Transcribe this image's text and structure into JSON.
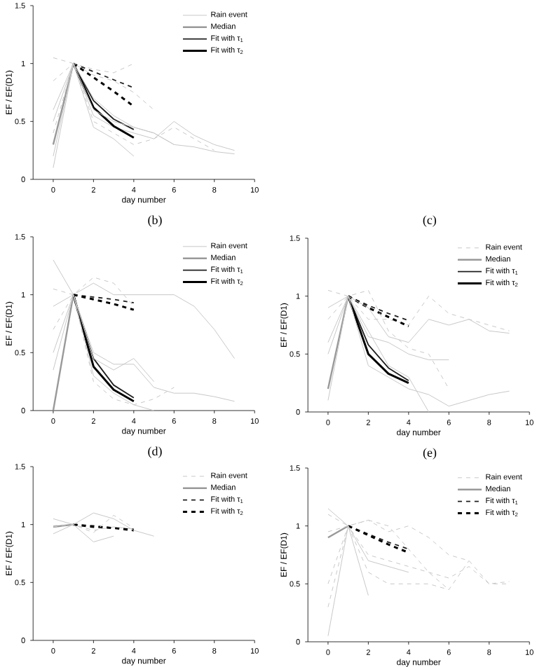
{
  "chart_data": [
    {
      "type": "line",
      "xlabel": "day number",
      "ylabel": "EF / EF(D1)",
      "xlim": [
        -1,
        10
      ],
      "ylim": [
        0,
        1.5
      ],
      "xticks": [
        0,
        2,
        4,
        6,
        8,
        10
      ],
      "yticks": [
        0,
        0.5,
        1,
        1.5
      ],
      "legend": "top right",
      "annotations": [
        "(b)",
        "(c)"
      ],
      "series": [
        {
          "name": "Rain event",
          "color": "#c8c8c8",
          "line_style": "solid",
          "x": [
            0,
            1,
            2,
            3,
            4,
            5,
            6,
            7,
            8,
            9
          ],
          "values": [
            0.1,
            1,
            0.55,
            0.45,
            0.4,
            0.35,
            0.5,
            0.38,
            0.3,
            0.25
          ]
        },
        {
          "name": "Median",
          "color": "#999999",
          "line_style": "solid",
          "x": [
            0,
            1
          ],
          "values": [
            0.3,
            1
          ]
        },
        {
          "name": "Fit with τ$_{1}$",
          "color": "#202020",
          "line_style": "solid",
          "x": [
            1,
            2,
            3,
            4
          ],
          "values": [
            1,
            0.68,
            0.52,
            0.43
          ]
        },
        {
          "name": "Fit with τ$_{2}$",
          "color": "#000000",
          "line_style": "solid",
          "x": [
            1,
            2,
            3,
            4
          ],
          "values": [
            1,
            0.62,
            0.46,
            0.36
          ]
        },
        {
          "color": "#202020",
          "line_style": "dashed",
          "x": [
            1,
            2,
            3,
            4
          ],
          "values": [
            1,
            0.93,
            0.86,
            0.79
          ]
        },
        {
          "color": "#000000",
          "line_style": "dashed",
          "x": [
            1,
            2,
            3,
            4
          ],
          "values": [
            1,
            0.88,
            0.76,
            0.63
          ]
        },
        {
          "color": "#c8c8c8",
          "line_style": "dashed",
          "x": [
            0,
            1,
            2,
            3,
            4
          ],
          "values": [
            0.85,
            1,
            0.95,
            0.92,
            1.0
          ]
        },
        {
          "color": "#c8c8c8",
          "line_style": "solid",
          "x": [
            0,
            1,
            2,
            3,
            4,
            5,
            6
          ],
          "values": [
            0.6,
            1,
            0.7,
            0.55,
            0.45,
            0.4,
            0.3
          ]
        },
        {
          "color": "#c8c8c8",
          "line_style": "dashed",
          "x": [
            0,
            1,
            2,
            3,
            4,
            5,
            6,
            7,
            8
          ],
          "values": [
            0.4,
            1,
            0.5,
            0.4,
            0.3,
            0.35,
            0.45,
            0.35,
            0.25
          ]
        },
        {
          "color": "#c8c8c8",
          "line_style": "dashed",
          "x": [
            0,
            1,
            2,
            3,
            4,
            5
          ],
          "values": [
            1.05,
            1,
            0.9,
            0.85,
            0.75,
            0.6
          ]
        },
        {
          "color": "#c8c8c8",
          "line_style": "solid",
          "x": [
            0,
            1,
            2,
            3,
            4
          ],
          "values": [
            0.2,
            1,
            0.45,
            0.35,
            0.2
          ]
        },
        {
          "color": "#c8c8c8",
          "line_style": "solid",
          "x": [
            0,
            1,
            2,
            3,
            4,
            5,
            6,
            7,
            8,
            9
          ],
          "values": [
            0.5,
            1,
            0.6,
            0.5,
            0.45,
            0.4,
            0.3,
            0.28,
            0.24,
            0.22
          ]
        }
      ]
    },
    {
      "type": "line",
      "xlabel": "day number",
      "ylabel": "EF / EF(D1)",
      "xlim": [
        -1,
        10
      ],
      "ylim": [
        0,
        1.5
      ],
      "xticks": [
        0,
        2,
        4,
        6,
        8,
        10
      ],
      "yticks": [
        0,
        0.5,
        1,
        1.5
      ],
      "legend": "top right",
      "annotations": [
        "(d)"
      ],
      "series": [
        {
          "name": "Rain event",
          "color": "#c8c8c8",
          "line_style": "solid",
          "x": [
            0,
            1,
            2,
            3,
            4,
            5,
            6,
            7,
            8,
            9
          ],
          "values": [
            1.3,
            1,
            1.1,
            1.0,
            1.0,
            1.0,
            1.0,
            0.9,
            0.7,
            0.45
          ]
        },
        {
          "name": "Median",
          "color": "#999999",
          "line_style": "solid",
          "x": [
            0,
            1
          ],
          "values": [
            0,
            1
          ]
        },
        {
          "name": "Fit with τ$_{1}$",
          "color": "#202020",
          "line_style": "solid",
          "x": [
            1,
            2,
            3,
            4
          ],
          "values": [
            1,
            0.45,
            0.22,
            0.11
          ]
        },
        {
          "name": "Fit with τ$_{2}$",
          "color": "#000000",
          "line_style": "solid",
          "x": [
            1,
            2,
            3,
            4
          ],
          "values": [
            1,
            0.38,
            0.18,
            0.08
          ]
        },
        {
          "color": "#202020",
          "line_style": "dashed",
          "x": [
            1,
            2,
            3,
            4
          ],
          "values": [
            1,
            0.98,
            0.96,
            0.93
          ]
        },
        {
          "color": "#000000",
          "line_style": "dashed",
          "x": [
            1,
            2,
            3,
            4
          ],
          "values": [
            1,
            0.96,
            0.92,
            0.87
          ]
        },
        {
          "color": "#c8c8c8",
          "line_style": "solid",
          "x": [
            0,
            1,
            2,
            3,
            4,
            5,
            6,
            7,
            8,
            9
          ],
          "values": [
            0.35,
            1,
            0.5,
            0.4,
            0.4,
            0.2,
            0.15,
            0.15,
            0.12,
            0.08
          ]
        },
        {
          "color": "#c8c8c8",
          "line_style": "solid",
          "x": [
            0,
            1,
            2,
            3,
            4,
            5
          ],
          "values": [
            0.9,
            1,
            0.3,
            0.15,
            0.05,
            0
          ]
        },
        {
          "color": "#c8c8c8",
          "line_style": "dashed",
          "x": [
            0,
            1,
            2,
            3,
            4,
            5,
            6
          ],
          "values": [
            0.7,
            1,
            0.25,
            0.1,
            0.05,
            0.1,
            0.2
          ]
        },
        {
          "color": "#c8c8c8",
          "line_style": "dashed",
          "x": [
            0,
            1,
            2,
            3,
            4
          ],
          "values": [
            1.05,
            1,
            1.15,
            1.1,
            0.9
          ]
        },
        {
          "color": "#c8c8c8",
          "line_style": "solid",
          "x": [
            0,
            1,
            2,
            3,
            4,
            5
          ],
          "values": [
            0.5,
            1,
            0.45,
            0.35,
            0.45,
            0.25
          ]
        }
      ]
    },
    {
      "type": "line",
      "xlabel": "day number",
      "ylabel": "EF / EF(D1)",
      "xlim": [
        -1,
        10
      ],
      "ylim": [
        0,
        1.5
      ],
      "xticks": [
        0,
        2,
        4,
        6,
        8,
        10
      ],
      "yticks": [
        0,
        0.5,
        1,
        1.5
      ],
      "legend": "top right",
      "annotations": [
        "(e)"
      ],
      "series": [
        {
          "name": "Rain event",
          "color": "#c8c8c8",
          "line_style": "dashed",
          "x": [
            0,
            1,
            2,
            3,
            4,
            5,
            6,
            7,
            8,
            9
          ],
          "values": [
            0.8,
            1,
            0.8,
            0.8,
            0.75,
            1.0,
            0.85,
            0.8,
            0.75,
            0.7
          ]
        },
        {
          "name": "Median",
          "color": "#999999",
          "line_style": "solid",
          "x": [
            0,
            1
          ],
          "values": [
            0.2,
            1
          ]
        },
        {
          "name": "Fit with τ$_{1}$",
          "color": "#202020",
          "line_style": "solid",
          "x": [
            1,
            2,
            3,
            4
          ],
          "values": [
            1,
            0.58,
            0.38,
            0.27
          ]
        },
        {
          "name": "Fit with τ$_{2}$",
          "color": "#000000",
          "line_style": "solid",
          "x": [
            1,
            2,
            3,
            4
          ],
          "values": [
            1,
            0.5,
            0.33,
            0.25
          ]
        },
        {
          "color": "#202020",
          "line_style": "dashed",
          "x": [
            1,
            2,
            3,
            4
          ],
          "values": [
            1,
            0.92,
            0.85,
            0.79
          ]
        },
        {
          "color": "#000000",
          "line_style": "dashed",
          "x": [
            1,
            2,
            3,
            4
          ],
          "values": [
            1,
            0.9,
            0.82,
            0.74
          ]
        },
        {
          "color": "#c8c8c8",
          "line_style": "solid",
          "x": [
            0,
            1,
            2,
            3,
            4,
            5,
            6,
            7,
            8,
            9
          ],
          "values": [
            0.1,
            1,
            0.4,
            0.3,
            0.2,
            0.15,
            0.05,
            0.1,
            0.15,
            0.18
          ]
        },
        {
          "color": "#c8c8c8",
          "line_style": "solid",
          "x": [
            0,
            1,
            2,
            3,
            4,
            5,
            6
          ],
          "values": [
            0.9,
            1,
            0.65,
            0.6,
            0.5,
            0.45,
            0.45
          ]
        },
        {
          "color": "#c8c8c8",
          "line_style": "solid",
          "x": [
            0,
            1,
            2,
            3,
            4,
            5
          ],
          "values": [
            0.5,
            1,
            0.7,
            0.4,
            0.3,
            0.0
          ]
        },
        {
          "color": "#c8c8c8",
          "line_style": "dashed",
          "x": [
            0,
            1,
            2,
            3,
            4,
            5,
            6
          ],
          "values": [
            1.05,
            1,
            1.05,
            0.7,
            0.55,
            0.5,
            0.2
          ]
        },
        {
          "color": "#c8c8c8",
          "line_style": "solid",
          "x": [
            0,
            1,
            2,
            3,
            4,
            5,
            6,
            7,
            8,
            9
          ],
          "values": [
            0.6,
            1,
            0.9,
            0.65,
            0.6,
            0.8,
            0.75,
            0.8,
            0.7,
            0.68
          ]
        }
      ]
    },
    {
      "type": "line",
      "xlabel": "day number",
      "ylabel": "EF / EF(D1)",
      "xlim": [
        -1,
        10
      ],
      "ylim": [
        0,
        1.5
      ],
      "xticks": [
        0,
        2,
        4,
        6,
        8,
        10
      ],
      "yticks": [
        0,
        0.5,
        1,
        1.5
      ],
      "legend": "top right",
      "series": [
        {
          "name": "Rain event",
          "color": "#c8c8c8",
          "line_style": "dashed",
          "x": [
            0,
            1,
            2,
            3,
            4
          ],
          "values": [
            0.99,
            1,
            0.95,
            0.98,
            0.96
          ]
        },
        {
          "name": "Median",
          "color": "#999999",
          "line_style": "solid",
          "x": [
            0,
            1
          ],
          "values": [
            0.98,
            1
          ]
        },
        {
          "name": "Fit with τ$_{1}$",
          "color": "#202020",
          "line_style": "dashed",
          "x": [
            1,
            2,
            3,
            4
          ],
          "values": [
            1,
            0.99,
            0.97,
            0.96
          ]
        },
        {
          "name": "Fit with τ$_{2}$",
          "color": "#000000",
          "line_style": "dashed",
          "x": [
            1,
            2,
            3,
            4
          ],
          "values": [
            1,
            0.98,
            0.97,
            0.95
          ]
        },
        {
          "color": "#c8c8c8",
          "line_style": "solid",
          "x": [
            0,
            1,
            2,
            3,
            4,
            5
          ],
          "values": [
            0.92,
            1,
            1.1,
            1.05,
            0.95,
            0.9
          ]
        },
        {
          "color": "#c8c8c8",
          "line_style": "solid",
          "x": [
            0,
            1,
            2,
            3
          ],
          "values": [
            1.05,
            1,
            0.85,
            0.9
          ]
        },
        {
          "color": "#c8c8c8",
          "line_style": "dashed",
          "x": [
            0,
            1,
            2,
            3,
            4
          ],
          "values": [
            0.98,
            1,
            0.93,
            1.08,
            0.97
          ]
        }
      ]
    },
    {
      "type": "line",
      "xlabel": "day number",
      "ylabel": "EF / EF(D1)",
      "xlim": [
        -1,
        10
      ],
      "ylim": [
        0,
        1.5
      ],
      "xticks": [
        0,
        2,
        4,
        6,
        8,
        10
      ],
      "yticks": [
        0,
        0.5,
        1,
        1.5
      ],
      "legend": "top right",
      "series": [
        {
          "name": "Rain event",
          "color": "#c8c8c8",
          "line_style": "dashed",
          "x": [
            0,
            1,
            2,
            3,
            4,
            5,
            6,
            7,
            8,
            9
          ],
          "values": [
            1.1,
            1,
            1.05,
            0.95,
            1.0,
            0.9,
            0.75,
            0.7,
            0.5,
            0.52
          ]
        },
        {
          "name": "Median",
          "color": "#999999",
          "line_style": "solid",
          "x": [
            0,
            1
          ],
          "values": [
            0.9,
            1
          ]
        },
        {
          "name": "Fit with τ$_{1}$",
          "color": "#202020",
          "line_style": "dashed",
          "x": [
            1,
            2,
            3,
            4
          ],
          "values": [
            1,
            0.93,
            0.86,
            0.8
          ]
        },
        {
          "name": "Fit with τ$_{2}$",
          "color": "#000000",
          "line_style": "dashed",
          "x": [
            1,
            2,
            3,
            4
          ],
          "values": [
            1,
            0.92,
            0.84,
            0.77
          ]
        },
        {
          "color": "#c8c8c8",
          "line_style": "solid",
          "x": [
            0,
            1,
            2
          ],
          "values": [
            0.05,
            1,
            0.4
          ]
        },
        {
          "color": "#c8c8c8",
          "line_style": "dashed",
          "x": [
            0,
            1,
            2,
            3,
            4,
            5,
            6,
            7,
            8,
            9
          ],
          "values": [
            0.5,
            1,
            0.75,
            0.7,
            0.65,
            0.6,
            0.55,
            0.65,
            0.5,
            0.5
          ]
        },
        {
          "color": "#c8c8c8",
          "line_style": "dashed",
          "x": [
            0,
            1,
            2,
            3,
            4,
            5,
            6
          ],
          "values": [
            0.95,
            1,
            1.05,
            1.0,
            0.8,
            0.6,
            0.45
          ]
        },
        {
          "color": "#c8c8c8",
          "line_style": "solid",
          "x": [
            0,
            1,
            2,
            3,
            4
          ],
          "values": [
            1.15,
            1,
            0.7,
            0.65,
            0.6
          ]
        },
        {
          "color": "#c8c8c8",
          "line_style": "dashed",
          "x": [
            0,
            1,
            2,
            3,
            4,
            5,
            6,
            7
          ],
          "values": [
            0.3,
            1,
            0.6,
            0.5,
            0.5,
            0.5,
            0.45,
            0.7
          ]
        }
      ]
    }
  ]
}
